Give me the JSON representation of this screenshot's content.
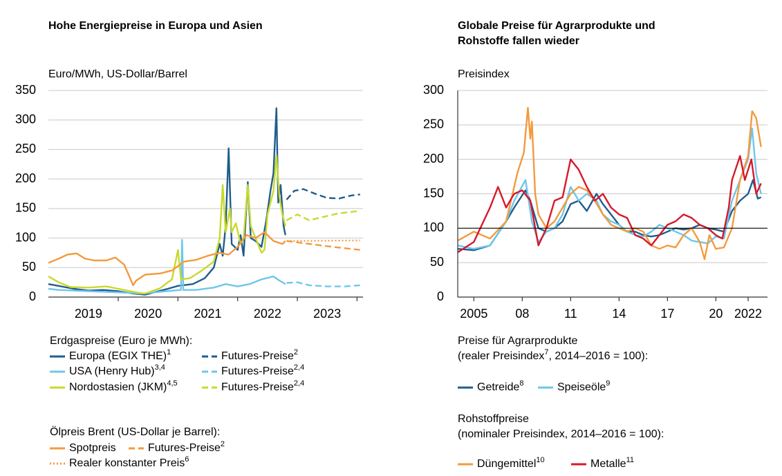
{
  "chart_data": [
    {
      "type": "line",
      "title": "Hohe Energiepreise in Europa und Asien",
      "ylabel": "Euro/MWh, US-Dollar/Barrel",
      "xlim": [
        2018.83,
        2024.1
      ],
      "ylim": [
        0,
        350
      ],
      "yticks": [
        0,
        50,
        100,
        150,
        200,
        250,
        300,
        350
      ],
      "grid": true,
      "xticks": [
        2020,
        2021,
        2022,
        2023,
        2024
      ],
      "xtick_labels": [
        {
          "value": 2019.5,
          "label": "2019"
        },
        {
          "value": 2020.5,
          "label": "2020"
        },
        {
          "value": 2021.5,
          "label": "2021"
        },
        {
          "value": 2022.5,
          "label": "2022"
        },
        {
          "value": 2023.5,
          "label": "2023"
        }
      ],
      "legend_titles": [
        "Erdgaspreise (Euro je MWh):",
        "Ölpreis Brent (US-Dollar je Barrel):"
      ],
      "series": [
        {
          "name": "Europa (EGIX THE)",
          "sup": "1",
          "color": "#1f5d8c",
          "dash": "solid",
          "x": [
            2018.83,
            2019.0,
            2019.25,
            2019.5,
            2019.75,
            2020.0,
            2020.25,
            2020.45,
            2020.6,
            2020.83,
            2021.0,
            2021.25,
            2021.45,
            2021.6,
            2021.7,
            2021.75,
            2021.8,
            2021.85,
            2021.9,
            2022.0,
            2022.05,
            2022.1,
            2022.17,
            2022.22,
            2022.3,
            2022.4,
            2022.48,
            2022.55,
            2022.6,
            2022.65,
            2022.68,
            2022.72,
            2022.77,
            2022.8
          ],
          "values": [
            22,
            19,
            14,
            11,
            12,
            10,
            6,
            4,
            8,
            14,
            19,
            22,
            32,
            50,
            90,
            70,
            120,
            252,
            90,
            80,
            105,
            70,
            195,
            100,
            95,
            85,
            130,
            180,
            210,
            320,
            160,
            190,
            120,
            105
          ]
        },
        {
          "name": "Futures-Preise",
          "sup": "2",
          "color": "#1f5d8c",
          "dash": "dashed",
          "x": [
            2022.82,
            2022.95,
            2023.1,
            2023.3,
            2023.5,
            2023.7,
            2023.9,
            2024.05
          ],
          "values": [
            165,
            180,
            183,
            175,
            168,
            167,
            172,
            174
          ]
        },
        {
          "name": "USA (Henry Hub)",
          "sup": "3,4",
          "color": "#6ec6ea",
          "dash": "solid",
          "x": [
            2018.83,
            2019.0,
            2019.5,
            2020.0,
            2020.4,
            2020.8,
            2021.05,
            2021.07,
            2021.09,
            2021.3,
            2021.6,
            2021.8,
            2022.0,
            2022.2,
            2022.4,
            2022.6,
            2022.7,
            2022.8
          ],
          "values": [
            14,
            12,
            10,
            8,
            6,
            10,
            12,
            97,
            12,
            12,
            16,
            22,
            18,
            22,
            30,
            35,
            28,
            22
          ]
        },
        {
          "name": "Futures-Preise",
          "sup": "2,4",
          "color": "#6ec6ea",
          "dash": "dashed",
          "x": [
            2022.82,
            2023.0,
            2023.2,
            2023.5,
            2023.8,
            2024.05
          ],
          "values": [
            24,
            25,
            20,
            18,
            18,
            20
          ]
        },
        {
          "name": "Nordostasien (JKM)",
          "sup": "4,5",
          "color": "#c8d92b",
          "dash": "solid",
          "x": [
            2018.83,
            2019.0,
            2019.2,
            2019.5,
            2019.8,
            2020.0,
            2020.3,
            2020.45,
            2020.7,
            2020.9,
            2021.0,
            2021.05,
            2021.2,
            2021.4,
            2021.6,
            2021.7,
            2021.75,
            2021.8,
            2021.87,
            2021.9,
            2021.97,
            2022.05,
            2022.1,
            2022.17,
            2022.22,
            2022.32,
            2022.4,
            2022.45,
            2022.5,
            2022.6,
            2022.65,
            2022.7,
            2022.75,
            2022.8
          ],
          "values": [
            35,
            25,
            17,
            16,
            18,
            14,
            8,
            6,
            15,
            30,
            80,
            30,
            32,
            45,
            60,
            100,
            190,
            110,
            150,
            110,
            125,
            90,
            100,
            190,
            120,
            95,
            75,
            80,
            140,
            180,
            240,
            170,
            140,
            120
          ]
        },
        {
          "name": "Futures-Preise",
          "sup": "2,4",
          "color": "#c8d92b",
          "dash": "dashed",
          "x": [
            2022.82,
            2023.0,
            2023.2,
            2023.4,
            2023.7,
            2024.05
          ],
          "values": [
            130,
            140,
            130,
            135,
            142,
            146
          ]
        },
        {
          "name": "Spotpreis",
          "color": "#f39a3d",
          "dash": "solid",
          "x": [
            2018.83,
            2019.0,
            2019.15,
            2019.3,
            2019.45,
            2019.6,
            2019.8,
            2019.95,
            2020.1,
            2020.25,
            2020.3,
            2020.45,
            2020.7,
            2020.9,
            2021.1,
            2021.3,
            2021.5,
            2021.7,
            2021.85,
            2022.0,
            2022.15,
            2022.3,
            2022.45,
            2022.6,
            2022.75,
            2022.8
          ],
          "values": [
            58,
            65,
            72,
            74,
            65,
            62,
            62,
            67,
            55,
            20,
            28,
            38,
            40,
            45,
            60,
            63,
            70,
            75,
            72,
            85,
            105,
            100,
            110,
            95,
            90,
            95
          ]
        },
        {
          "name": "Futures-Preise",
          "sup": "2",
          "color": "#f39a3d",
          "dash": "dashed",
          "x": [
            2022.82,
            2023.2,
            2023.6,
            2024.05
          ],
          "values": [
            95,
            90,
            85,
            80
          ]
        },
        {
          "name": "Realer konstanter Preis",
          "sup": "6",
          "color": "#f39a3d",
          "dash": "dotted",
          "x": [
            2022.82,
            2024.05
          ],
          "values": [
            95,
            96
          ]
        }
      ]
    },
    {
      "type": "line",
      "title": [
        "Globale Preise für Agrarprodukte und",
        "Rohstoffe fallen wieder"
      ],
      "ylabel": "Preisindex",
      "xlim": [
        2004,
        2023.2
      ],
      "ylim": [
        0,
        300
      ],
      "yticks": [
        0,
        50,
        100,
        150,
        200,
        250,
        300
      ],
      "grid": true,
      "hline": 100,
      "xticks": [
        {
          "value": 2005,
          "label": "2005"
        },
        {
          "value": 2008,
          "label": "08"
        },
        {
          "value": 2011,
          "label": "11"
        },
        {
          "value": 2014,
          "label": "14"
        },
        {
          "value": 2017,
          "label": "17"
        },
        {
          "value": 2020,
          "label": "20"
        },
        {
          "value": 2022,
          "label": "2022"
        }
      ],
      "legend_titles": [
        [
          "Preise für Agrarprodukte",
          "(realer Preisindex",
          "7",
          ", 2014–2016 = 100):"
        ],
        [
          "Rohstoffpreise",
          "(nominaler Preisindex, 2014–2016 = 100):"
        ]
      ],
      "series": [
        {
          "name": "Getreide",
          "sup": "8",
          "color": "#1f5d8c",
          "dash": "solid",
          "x": [
            2004,
            2005,
            2006,
            2007,
            2007.5,
            2008.2,
            2008.5,
            2009,
            2009.5,
            2010,
            2010.5,
            2011,
            2011.5,
            2012,
            2012.6,
            2013,
            2013.5,
            2014,
            2014.5,
            2015,
            2015.5,
            2016,
            2016.5,
            2017,
            2017.5,
            2018,
            2018.5,
            2019,
            2019.5,
            2020,
            2020.5,
            2021,
            2021.5,
            2022,
            2022.3,
            2022.6,
            2022.8
          ],
          "values": [
            70,
            68,
            75,
            110,
            130,
            155,
            140,
            100,
            95,
            100,
            110,
            135,
            140,
            125,
            150,
            135,
            120,
            105,
            95,
            95,
            90,
            88,
            90,
            95,
            100,
            98,
            100,
            105,
            100,
            98,
            95,
            125,
            140,
            150,
            170,
            143,
            145
          ]
        },
        {
          "name": "Speiseöle",
          "sup": "9",
          "color": "#6ec6ea",
          "dash": "solid",
          "x": [
            2004,
            2005,
            2006,
            2007,
            2007.5,
            2008.2,
            2008.6,
            2009,
            2009.5,
            2010,
            2010.5,
            2011,
            2011.5,
            2012,
            2012.6,
            2013,
            2013.5,
            2014,
            2014.5,
            2015,
            2015.5,
            2016,
            2016.5,
            2017,
            2017.5,
            2018,
            2018.5,
            2019,
            2019.5,
            2020,
            2020.5,
            2021,
            2021.5,
            2022,
            2022.25,
            2022.5,
            2022.8
          ],
          "values": [
            75,
            70,
            75,
            110,
            140,
            170,
            110,
            80,
            95,
            100,
            120,
            160,
            140,
            150,
            140,
            120,
            110,
            105,
            95,
            90,
            88,
            95,
            105,
            100,
            95,
            90,
            82,
            80,
            78,
            88,
            85,
            140,
            170,
            200,
            245,
            180,
            150
          ]
        },
        {
          "name": "Düngemittel",
          "sup": "10",
          "color": "#f39a3d",
          "dash": "solid",
          "x": [
            2004,
            2005,
            2006,
            2007,
            2007.7,
            2008.1,
            2008.35,
            2008.5,
            2008.6,
            2008.8,
            2009,
            2009.5,
            2010,
            2010.5,
            2011,
            2011.5,
            2012,
            2012.5,
            2013,
            2013.5,
            2014,
            2014.5,
            2015,
            2015.5,
            2016,
            2016.5,
            2017,
            2017.5,
            2018,
            2018.5,
            2019,
            2019.3,
            2019.6,
            2020,
            2020.5,
            2021,
            2021.5,
            2022,
            2022.25,
            2022.5,
            2022.8
          ],
          "values": [
            82,
            95,
            85,
            110,
            180,
            210,
            275,
            230,
            255,
            150,
            120,
            100,
            110,
            130,
            150,
            160,
            155,
            140,
            120,
            105,
            100,
            95,
            100,
            95,
            75,
            70,
            75,
            72,
            90,
            100,
            80,
            55,
            90,
            70,
            72,
            100,
            170,
            205,
            270,
            260,
            218
          ]
        },
        {
          "name": "Metalle",
          "sup": "11",
          "color": "#d7182a",
          "dash": "solid",
          "x": [
            2004,
            2005,
            2006,
            2006.5,
            2007,
            2007.5,
            2008,
            2008.5,
            2009,
            2009.5,
            2010,
            2010.5,
            2011,
            2011.5,
            2012,
            2012.5,
            2013,
            2013.5,
            2014,
            2014.5,
            2015,
            2015.5,
            2016,
            2016.5,
            2017,
            2017.5,
            2018,
            2018.5,
            2019,
            2019.5,
            2020,
            2020.4,
            2020.8,
            2021,
            2021.5,
            2021.8,
            2022.2,
            2022.5,
            2022.8
          ],
          "values": [
            65,
            80,
            130,
            160,
            130,
            150,
            155,
            140,
            75,
            100,
            140,
            145,
            200,
            185,
            160,
            140,
            150,
            130,
            120,
            115,
            90,
            85,
            75,
            90,
            105,
            110,
            120,
            115,
            105,
            100,
            90,
            85,
            130,
            170,
            205,
            170,
            200,
            150,
            165
          ]
        }
      ]
    }
  ]
}
